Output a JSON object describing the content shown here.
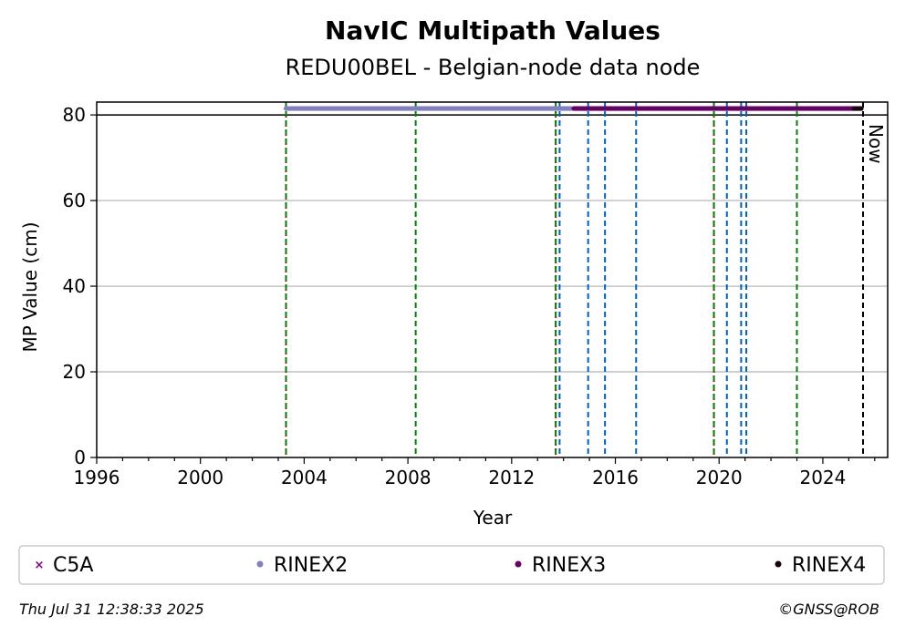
{
  "chart_data": {
    "type": "scatter",
    "title": "NavIC Multipath Values",
    "subtitle": "REDU00BEL - Belgian-node data node",
    "xlabel": "Year",
    "ylabel": "MP Value (cm)",
    "xlim": [
      1996,
      2026.5
    ],
    "ylim": [
      0,
      83
    ],
    "x_ticks": [
      1996,
      2000,
      2004,
      2008,
      2012,
      2016,
      2020,
      2024
    ],
    "y_ticks": [
      0,
      20,
      40,
      60,
      80
    ],
    "grid": "horizontal",
    "reference_line_y": 80,
    "series": [
      {
        "name": "C5A",
        "marker": "x",
        "color": "#8b008b",
        "x_range": null,
        "y": null
      },
      {
        "name": "RINEX2",
        "marker": "dot",
        "color": "#8080c0",
        "x_range": [
          2003.3,
          2014.3
        ],
        "y": 81.5
      },
      {
        "name": "RINEX3",
        "marker": "dot",
        "color": "#660066",
        "x_range": [
          2014.4,
          2025.2
        ],
        "y": 81.5
      },
      {
        "name": "RINEX4",
        "marker": "dot",
        "color": "#1a0010",
        "x_range": [
          2025.2,
          2025.5
        ],
        "y": 81.5
      }
    ],
    "vlines": [
      {
        "x": 2003.3,
        "color": "#d00000",
        "style": "dotted"
      },
      {
        "x": 2003.3,
        "color": "#008000",
        "style": "dashed"
      },
      {
        "x": 2008.3,
        "color": "#008000",
        "style": "dashed"
      },
      {
        "x": 2013.7,
        "color": "#d00000",
        "style": "dotted"
      },
      {
        "x": 2013.7,
        "color": "#008000",
        "style": "dashed"
      },
      {
        "x": 2013.85,
        "color": "#0060c0",
        "style": "dashed"
      },
      {
        "x": 2014.95,
        "color": "#0060c0",
        "style": "dashed"
      },
      {
        "x": 2015.6,
        "color": "#0060c0",
        "style": "dashed"
      },
      {
        "x": 2016.8,
        "color": "#0060c0",
        "style": "dashed"
      },
      {
        "x": 2019.8,
        "color": "#d00000",
        "style": "dotted"
      },
      {
        "x": 2019.8,
        "color": "#008000",
        "style": "dashed"
      },
      {
        "x": 2020.3,
        "color": "#0060c0",
        "style": "dashed"
      },
      {
        "x": 2020.85,
        "color": "#0060c0",
        "style": "dashed"
      },
      {
        "x": 2021.05,
        "color": "#0060c0",
        "style": "dashed"
      },
      {
        "x": 2023.0,
        "color": "#008000",
        "style": "dashed"
      },
      {
        "x": 2025.55,
        "color": "#000000",
        "style": "dashed"
      }
    ],
    "now_label": "Now",
    "legend_position": "bottom"
  },
  "footer": {
    "timestamp": "Thu Jul 31 12:38:33 2025",
    "credit": "©GNSS@ROB"
  }
}
